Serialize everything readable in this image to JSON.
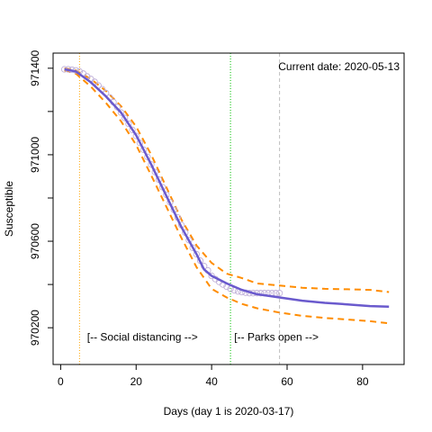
{
  "chart_data": {
    "type": "line",
    "title": "",
    "xlabel": "Days (day 1 is 2020-03-17)",
    "ylabel": "Susceptible",
    "xlim": [
      -2,
      91
    ],
    "ylim": [
      970030,
      971470
    ],
    "x_ticks": [
      0,
      20,
      40,
      60,
      80
    ],
    "y_ticks": [
      970200,
      970400,
      970600,
      970800,
      971000,
      971200,
      971400
    ],
    "y_tick_labels": [
      {
        "value": 970200,
        "label": "970200"
      },
      {
        "value": 970600,
        "label": "970600"
      },
      {
        "value": 971000,
        "label": "971000"
      },
      {
        "value": 971400,
        "label": "971400"
      }
    ],
    "current_date_label": "Current date:  2020-05-13",
    "vlines": [
      {
        "x": 5,
        "color": "#ffa500",
        "style": "dotted"
      },
      {
        "x": 45,
        "color": "#00c000",
        "style": "dotted"
      },
      {
        "x": 58,
        "color": "#bebebe",
        "style": "dashed"
      }
    ],
    "annotations": [
      {
        "text": "[-- Social distancing -->",
        "x": 7,
        "y": 970140
      },
      {
        "text": "[-- Parks open -->",
        "x": 46,
        "y": 970140
      }
    ],
    "colors": {
      "fit": "#6a5acd",
      "band": "#ff8c00",
      "points": "#c0b0d8"
    },
    "series": [
      {
        "style": "solid-line",
        "x": [
          1,
          4,
          8,
          12,
          16,
          20,
          24,
          28,
          32,
          36,
          38,
          40,
          44,
          48,
          52,
          58,
          64,
          70,
          76,
          82,
          87
        ],
        "y": [
          971395,
          971385,
          971335,
          971270,
          971195,
          971090,
          970955,
          970810,
          970665,
          970540,
          970470,
          970440,
          970405,
          970375,
          970355,
          970340,
          970325,
          970315,
          970308,
          970300,
          970297
        ]
      },
      {
        "style": "dashed-upper",
        "x": [
          1,
          4,
          8,
          12,
          16,
          20,
          24,
          28,
          32,
          36,
          40,
          44,
          48,
          52,
          58,
          64,
          70,
          76,
          82,
          87
        ],
        "y": [
          971400,
          971390,
          971350,
          971295,
          971225,
          971130,
          971000,
          970850,
          970700,
          970580,
          970500,
          970450,
          970430,
          970405,
          970395,
          970385,
          970380,
          970378,
          970375,
          970365
        ]
      },
      {
        "style": "dashed-lower",
        "x": [
          1,
          4,
          8,
          12,
          16,
          20,
          24,
          28,
          32,
          36,
          40,
          44,
          48,
          52,
          58,
          64,
          70,
          76,
          82,
          87
        ],
        "y": [
          971390,
          971375,
          971315,
          971240,
          971155,
          971045,
          970905,
          970760,
          970615,
          970480,
          970380,
          970340,
          970310,
          970290,
          970270,
          970255,
          970245,
          970238,
          970230,
          970220
        ]
      },
      {
        "style": "points",
        "x": [
          1,
          2,
          3,
          4,
          5,
          6,
          7,
          8,
          9,
          10,
          11,
          12,
          13,
          14,
          15,
          16,
          17,
          18,
          19,
          20,
          21,
          22,
          23,
          24,
          25,
          26,
          27,
          28,
          29,
          30,
          31,
          32,
          33,
          34,
          35,
          36,
          37,
          38,
          39,
          40,
          41,
          42,
          43,
          44,
          45,
          46,
          47,
          48,
          49,
          50,
          51,
          52,
          53,
          54,
          55,
          56,
          57,
          58
        ],
        "y": [
          971395,
          971395,
          971393,
          971390,
          971385,
          971375,
          971362,
          971350,
          971337,
          971320,
          971303,
          971285,
          971265,
          971243,
          971220,
          971195,
          971170,
          971143,
          971115,
          971087,
          971055,
          971023,
          970990,
          970955,
          970920,
          970885,
          970850,
          970815,
          970780,
          970745,
          970710,
          970675,
          970640,
          970605,
          970570,
          970540,
          970510,
          970485,
          970465,
          970440,
          970425,
          970412,
          970400,
          970390,
          970380,
          970373,
          970368,
          970365,
          970362,
          970360,
          970360,
          970360,
          970360,
          970360,
          970360,
          970360,
          970360,
          970360
        ]
      }
    ]
  }
}
